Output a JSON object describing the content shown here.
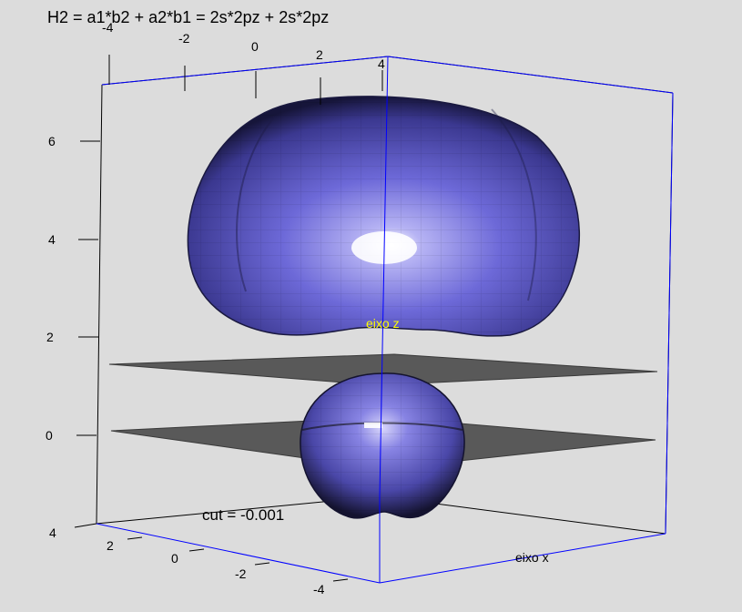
{
  "chart_data": {
    "type": "isosurface-3d",
    "title": "H2 = a1*b2 + a2*b1 = 2s*2pz + 2s*2pz",
    "annotation": "cut = -0.001",
    "zlabel": "eixo z",
    "xlabel": "eixo x",
    "top_axis_ticks": [
      "-4",
      "-2",
      "0",
      "2",
      "4"
    ],
    "z_axis_ticks": [
      "6",
      "4",
      "2",
      "0"
    ],
    "bottom_axis_ticks": [
      "4",
      "2",
      "0",
      "-2",
      "-4"
    ],
    "surfaces": [
      {
        "lobe": "upper",
        "z_range": [
          2.2,
          6.7
        ],
        "color": "#6a66d6"
      },
      {
        "lobe": "lower",
        "z_range": [
          -1.8,
          1.2
        ],
        "color": "#6a66d6"
      }
    ],
    "cutting_planes_z": [
      1.4,
      0.0
    ],
    "plane_color": "#595959",
    "box_color_front": "#0000ff",
    "box_color_back": "#000000",
    "axis_label_color": "#ffff00"
  }
}
